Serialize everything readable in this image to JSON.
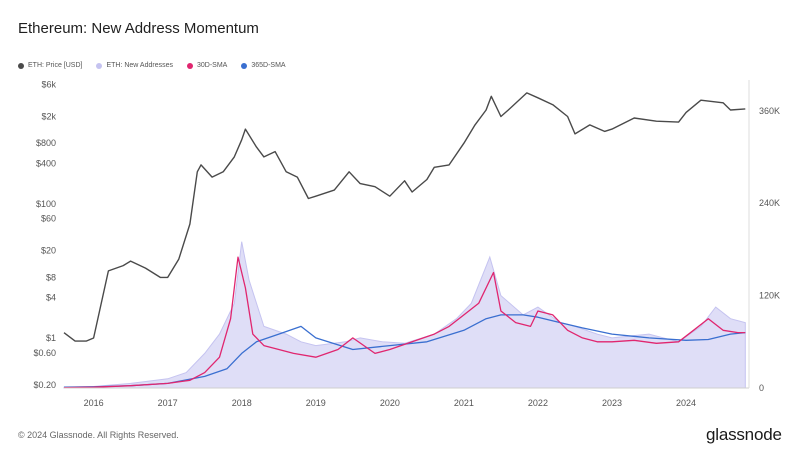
{
  "header": {
    "title": "Ethereum: New Address Momentum"
  },
  "footer": {
    "copyright": "© 2024 Glassnode. All Rights Reserved.",
    "logo": "glassnode"
  },
  "chart_data": {
    "type": "line",
    "title": "Ethereum: New Address Momentum",
    "grid": false,
    "legend": "top-left",
    "x_axis": {
      "ticks": [
        "2016",
        "2017",
        "2018",
        "2019",
        "2020",
        "2021",
        "2022",
        "2023",
        "2024"
      ],
      "range": [
        "2015-08",
        "2024-10"
      ]
    },
    "y_left": {
      "scale": "log",
      "ticks": [
        "$0.20",
        "$0.60",
        "$1",
        "$4",
        "$8",
        "$20",
        "$60",
        "$100",
        "$400",
        "$800",
        "$2k",
        "$6k"
      ],
      "tick_values": [
        0.2,
        0.6,
        1,
        4,
        8,
        20,
        60,
        100,
        400,
        800,
        2000,
        6000
      ]
    },
    "y_right": {
      "scale": "linear",
      "ticks": [
        "0",
        "120K",
        "240K",
        "360K"
      ],
      "tick_values": [
        0,
        120000,
        240000,
        360000
      ],
      "range": [
        0,
        400000
      ]
    },
    "series": [
      {
        "name": "ETH: Price [USD]",
        "color": "#4a4a4a",
        "axis": "left",
        "x": [
          2015.6,
          2015.75,
          2015.9,
          2016.0,
          2016.2,
          2016.4,
          2016.5,
          2016.7,
          2016.9,
          2017.0,
          2017.15,
          2017.3,
          2017.4,
          2017.45,
          2017.6,
          2017.75,
          2017.9,
          2018.0,
          2018.05,
          2018.2,
          2018.3,
          2018.45,
          2018.6,
          2018.75,
          2018.9,
          2019.0,
          2019.25,
          2019.45,
          2019.6,
          2019.8,
          2020.0,
          2020.2,
          2020.3,
          2020.5,
          2020.6,
          2020.8,
          2021.0,
          2021.15,
          2021.3,
          2021.37,
          2021.5,
          2021.6,
          2021.85,
          2022.0,
          2022.2,
          2022.4,
          2022.5,
          2022.7,
          2022.9,
          2023.0,
          2023.3,
          2023.6,
          2023.9,
          2024.0,
          2024.2,
          2024.5,
          2024.6,
          2024.8
        ],
        "y": [
          1.2,
          0.9,
          0.9,
          1,
          10,
          12,
          14,
          11,
          8,
          8,
          15,
          50,
          300,
          380,
          250,
          300,
          500,
          900,
          1300,
          700,
          500,
          600,
          300,
          250,
          120,
          130,
          160,
          300,
          200,
          180,
          130,
          220,
          150,
          230,
          350,
          380,
          800,
          1500,
          2500,
          4000,
          2000,
          2500,
          4500,
          3800,
          3000,
          2000,
          1100,
          1500,
          1200,
          1300,
          1900,
          1700,
          1650,
          2300,
          3500,
          3200,
          2500,
          2600
        ]
      },
      {
        "name": "ETH: New Addresses",
        "color": "#c5c3f0",
        "axis": "right",
        "x": [
          2015.6,
          2016.0,
          2016.5,
          2017.0,
          2017.25,
          2017.5,
          2017.7,
          2017.9,
          2018.0,
          2018.1,
          2018.3,
          2018.6,
          2018.8,
          2019.0,
          2019.4,
          2019.6,
          2019.9,
          2020.2,
          2020.6,
          2020.9,
          2021.1,
          2021.35,
          2021.5,
          2021.8,
          2022.0,
          2022.3,
          2022.5,
          2022.8,
          2023.0,
          2023.5,
          2023.9,
          2024.2,
          2024.4,
          2024.6,
          2024.8
        ],
        "y": [
          1000,
          2000,
          6000,
          12000,
          20000,
          45000,
          70000,
          110000,
          190000,
          140000,
          80000,
          70000,
          60000,
          55000,
          60000,
          65000,
          60000,
          58000,
          70000,
          90000,
          110000,
          170000,
          120000,
          95000,
          105000,
          85000,
          80000,
          70000,
          65000,
          70000,
          60000,
          80000,
          105000,
          90000,
          85000
        ]
      },
      {
        "name": "30D-SMA",
        "color": "#e0266f",
        "axis": "right",
        "x": [
          2015.6,
          2016.0,
          2016.5,
          2017.0,
          2017.3,
          2017.5,
          2017.7,
          2017.85,
          2017.95,
          2018.05,
          2018.15,
          2018.3,
          2018.5,
          2018.7,
          2019.0,
          2019.3,
          2019.5,
          2019.8,
          2020.0,
          2020.3,
          2020.6,
          2020.8,
          2021.0,
          2021.2,
          2021.4,
          2021.5,
          2021.7,
          2021.9,
          2022.0,
          2022.2,
          2022.4,
          2022.6,
          2022.8,
          2023.0,
          2023.3,
          2023.6,
          2023.9,
          2024.1,
          2024.3,
          2024.5,
          2024.7,
          2024.8
        ],
        "y": [
          500,
          1000,
          3000,
          6000,
          10000,
          20000,
          40000,
          90000,
          170000,
          130000,
          70000,
          55000,
          50000,
          45000,
          40000,
          50000,
          65000,
          45000,
          50000,
          60000,
          70000,
          80000,
          95000,
          110000,
          150000,
          100000,
          85000,
          80000,
          100000,
          95000,
          75000,
          65000,
          60000,
          60000,
          62000,
          58000,
          60000,
          75000,
          90000,
          75000,
          72000,
          72000
        ]
      },
      {
        "name": "365D-SMA",
        "color": "#3a6fd0",
        "axis": "right",
        "x": [
          2015.6,
          2016.0,
          2016.5,
          2017.0,
          2017.5,
          2017.8,
          2018.0,
          2018.2,
          2018.5,
          2018.8,
          2019.0,
          2019.5,
          2020.0,
          2020.5,
          2021.0,
          2021.3,
          2021.5,
          2021.8,
          2022.0,
          2022.3,
          2022.6,
          2023.0,
          2023.5,
          2024.0,
          2024.3,
          2024.6,
          2024.8
        ],
        "y": [
          1000,
          1500,
          3000,
          6000,
          15000,
          25000,
          45000,
          60000,
          70000,
          80000,
          65000,
          50000,
          55000,
          60000,
          75000,
          90000,
          95000,
          95000,
          92000,
          85000,
          78000,
          70000,
          65000,
          62000,
          63000,
          70000,
          72000
        ]
      }
    ]
  }
}
